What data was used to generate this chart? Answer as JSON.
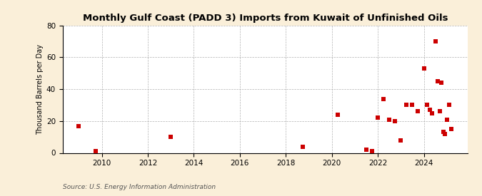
{
  "title": "Monthly Gulf Coast (PADD 3) Imports from Kuwait of Unfinished Oils",
  "ylabel": "Thousand Barrels per Day",
  "source": "Source: U.S. Energy Information Administration",
  "background_color": "#faefd9",
  "plot_background_color": "#ffffff",
  "marker_color": "#cc0000",
  "marker_size": 5,
  "ylim": [
    0,
    80
  ],
  "yticks": [
    0,
    20,
    40,
    60,
    80
  ],
  "xlim_min": 2008.3,
  "xlim_max": 2025.9,
  "xticks": [
    2010,
    2012,
    2014,
    2016,
    2018,
    2020,
    2022,
    2024
  ],
  "data_points": [
    [
      2009.0,
      17
    ],
    [
      2009.75,
      1
    ],
    [
      2013.0,
      10
    ],
    [
      2018.75,
      4
    ],
    [
      2020.25,
      24
    ],
    [
      2021.5,
      2
    ],
    [
      2021.75,
      1
    ],
    [
      2022.0,
      22
    ],
    [
      2022.25,
      34
    ],
    [
      2022.5,
      21
    ],
    [
      2022.75,
      20
    ],
    [
      2023.0,
      8
    ],
    [
      2023.25,
      30
    ],
    [
      2023.5,
      30
    ],
    [
      2023.75,
      26
    ],
    [
      2024.0,
      53
    ],
    [
      2024.15,
      30
    ],
    [
      2024.25,
      27
    ],
    [
      2024.35,
      25
    ],
    [
      2024.5,
      70
    ],
    [
      2024.6,
      45
    ],
    [
      2024.7,
      26
    ],
    [
      2024.75,
      44
    ],
    [
      2024.85,
      13
    ],
    [
      2024.9,
      12
    ],
    [
      2025.0,
      21
    ],
    [
      2025.1,
      30
    ],
    [
      2025.2,
      15
    ]
  ]
}
